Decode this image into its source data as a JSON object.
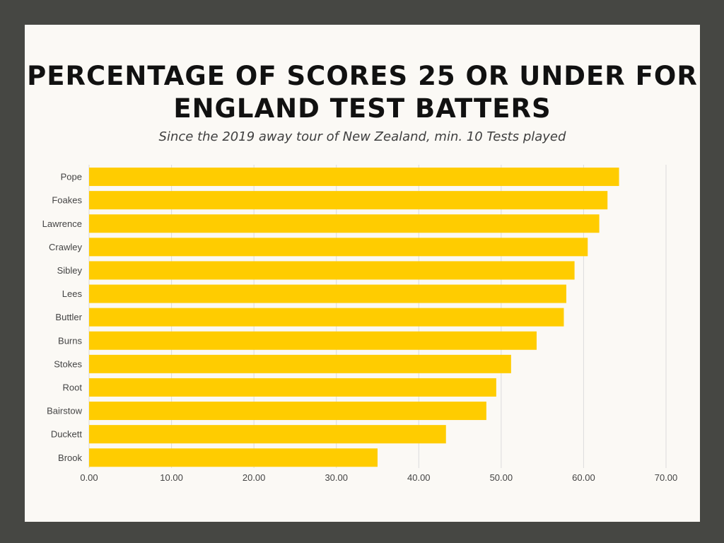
{
  "title": "PERCENTAGE OF SCORES 25 OR UNDER FOR ENGLAND TEST BATTERS",
  "subtitle": "Since the 2019 away tour of New Zealand, min. 10 Tests played",
  "colors": {
    "background": "#464743",
    "card": "#fbf9f5",
    "bar": "#ffcc00",
    "grid": "#dcdcdc"
  },
  "chart_data": {
    "type": "bar",
    "orientation": "horizontal",
    "title": "PERCENTAGE OF SCORES 25 OR UNDER FOR ENGLAND TEST BATTERS",
    "subtitle": "Since the 2019 away tour of New Zealand, min. 10 Tests played",
    "categories": [
      "Pope",
      "Foakes",
      "Lawrence",
      "Crawley",
      "Sibley",
      "Lees",
      "Buttler",
      "Burns",
      "Stokes",
      "Root",
      "Bairstow",
      "Duckett",
      "Brook"
    ],
    "values": [
      64.3,
      62.9,
      61.9,
      60.5,
      58.9,
      57.9,
      57.6,
      54.3,
      51.2,
      49.4,
      48.2,
      43.3,
      35.0
    ],
    "xlim": [
      0,
      70
    ],
    "xticks": [
      "0.00",
      "10.00",
      "20.00",
      "30.00",
      "40.00",
      "50.00",
      "60.00",
      "70.00"
    ],
    "xlabel": "",
    "ylabel": "",
    "grid": true,
    "legend": "none"
  }
}
